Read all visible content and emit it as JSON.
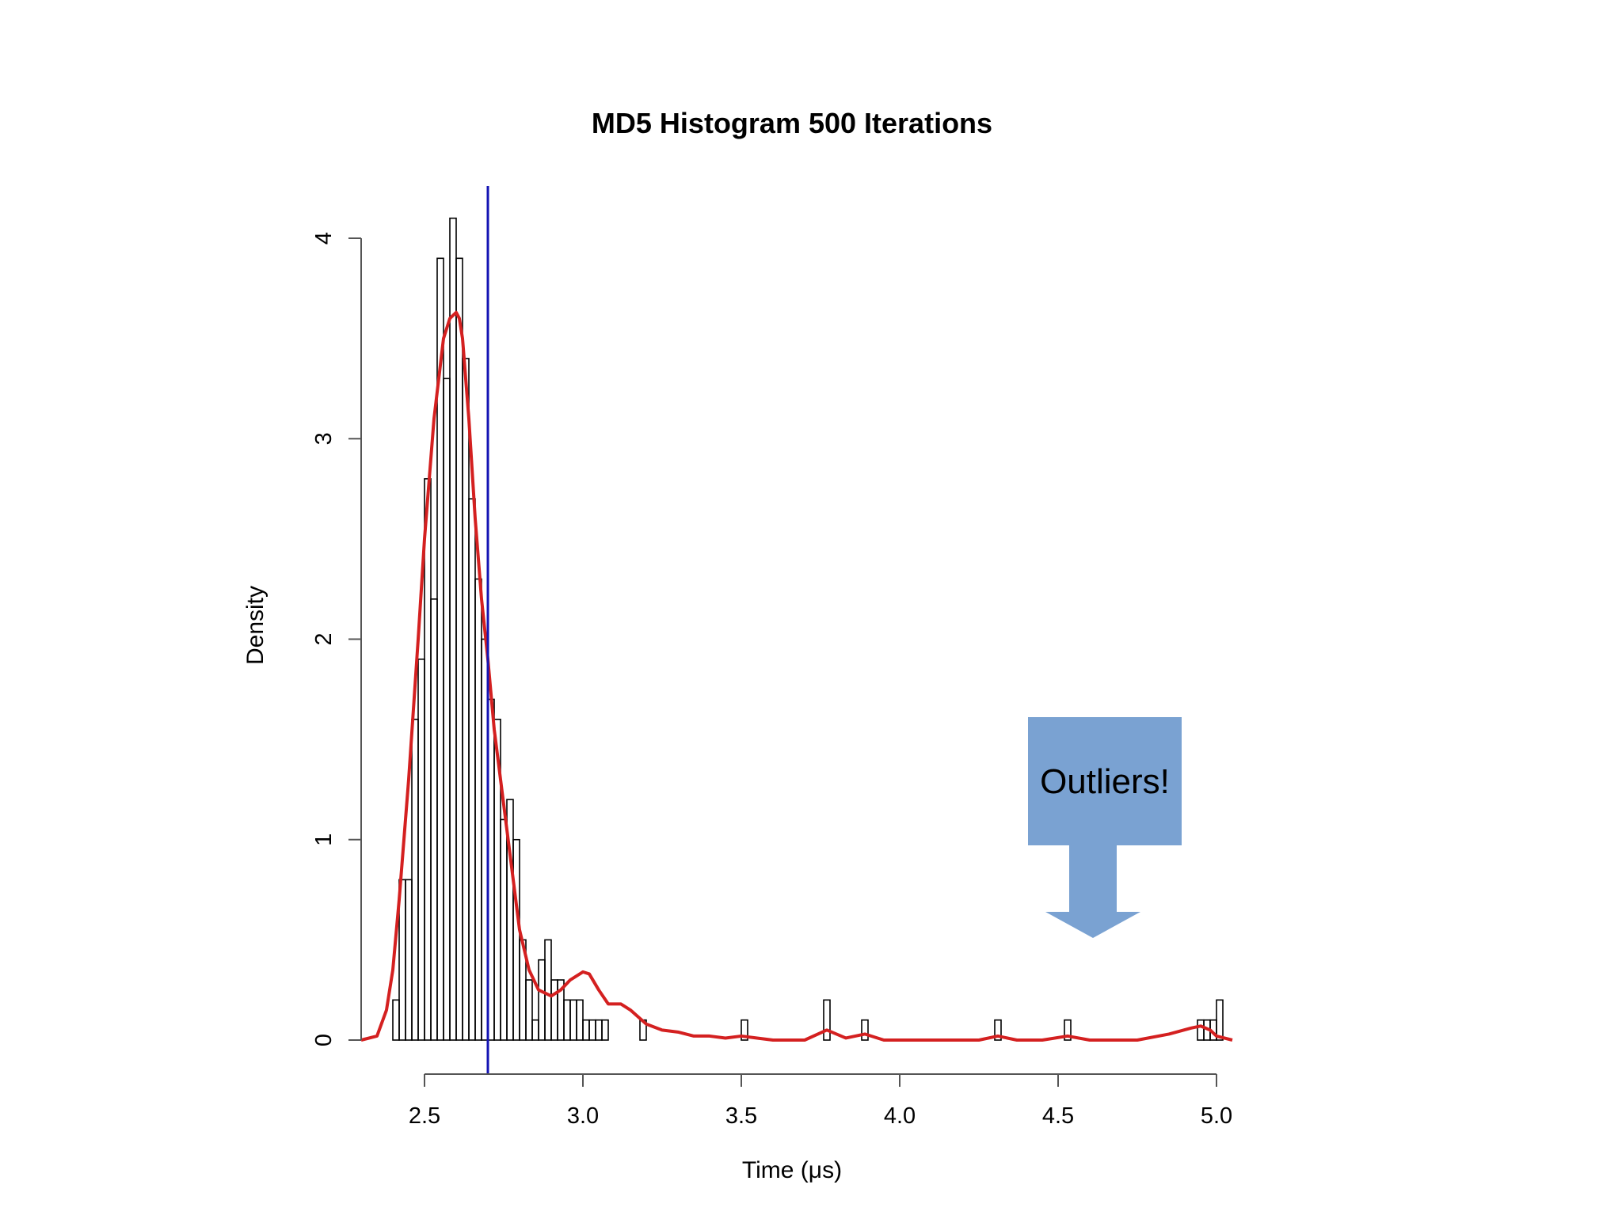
{
  "chart_data": {
    "type": "bar",
    "title": "MD5 Histogram 500 Iterations",
    "xlabel": "Time (μs)",
    "ylabel": "Density",
    "xlim": [
      2.3,
      5.05
    ],
    "ylim": [
      0,
      4.1
    ],
    "x_ticks": [
      2.5,
      3.0,
      3.5,
      4.0,
      4.5,
      5.0
    ],
    "x_tick_labels": [
      "2.5",
      "3.0",
      "3.5",
      "4.0",
      "4.5",
      "5.0"
    ],
    "y_ticks": [
      0,
      1,
      2,
      3,
      4
    ],
    "y_tick_labels": [
      "0",
      "1",
      "2",
      "3",
      "4"
    ],
    "bin_width": 0.02,
    "bins_start": 2.4,
    "histogram": [
      0.2,
      0.8,
      0.8,
      1.6,
      1.9,
      2.8,
      2.2,
      3.9,
      3.3,
      4.1,
      3.9,
      3.4,
      2.7,
      2.3,
      2.0,
      1.7,
      1.6,
      1.1,
      1.2,
      1.0,
      0.5,
      0.3,
      0.1,
      0.4,
      0.5,
      0.3,
      0.3,
      0.2,
      0.2,
      0.2,
      0.1,
      0.1,
      0.1,
      0.1,
      0.0,
      0.0,
      0.0,
      0.0,
      0.0,
      0.1,
      0.0,
      0.0,
      0.0,
      0.0,
      0.0,
      0.0,
      0.0,
      0.0,
      0.0,
      0.0,
      0.0,
      0.0,
      0.0,
      0.0,
      0.0,
      0.0,
      0.0,
      0.0,
      0.0,
      0.0,
      0.0,
      0.0,
      0.0,
      0.0,
      0.0,
      0.0,
      0.0,
      0.0,
      0.0,
      0.0,
      0.0,
      0.0,
      0.0,
      0.0,
      0.0,
      0.0,
      0.0,
      0.0,
      0.0,
      0.0,
      0.0,
      0.0,
      0.0,
      0.0,
      0.0,
      0.0,
      0.0,
      0.0,
      0.0,
      0.0,
      0.0,
      0.0,
      0.0,
      0.0,
      0.0,
      0.0,
      0.0,
      0.0,
      0.0,
      0.0,
      0.0,
      0.0,
      0.0,
      0.0,
      0.0,
      0.0,
      0.0,
      0.0,
      0.0,
      0.0,
      0.0,
      0.0,
      0.0,
      0.0,
      0.0,
      0.0,
      0.0,
      0.0,
      0.0,
      0.0,
      0.0,
      0.0,
      0.0,
      0.0,
      0.0,
      0.0,
      0.0,
      0.1,
      0.1,
      0.1,
      0.2
    ],
    "outlier_bins": [
      {
        "x": 3.51,
        "density": 0.1
      },
      {
        "x": 3.77,
        "density": 0.2
      },
      {
        "x": 3.89,
        "density": 0.1
      },
      {
        "x": 4.31,
        "density": 0.1
      },
      {
        "x": 4.53,
        "density": 0.1
      }
    ],
    "density_curve": {
      "name": "kernel density",
      "color": "#d42020",
      "x": [
        2.3,
        2.35,
        2.38,
        2.4,
        2.42,
        2.45,
        2.48,
        2.5,
        2.53,
        2.56,
        2.58,
        2.6,
        2.61,
        2.62,
        2.64,
        2.66,
        2.68,
        2.7,
        2.72,
        2.74,
        2.76,
        2.78,
        2.8,
        2.83,
        2.86,
        2.9,
        2.93,
        2.96,
        3.0,
        3.02,
        3.05,
        3.08,
        3.12,
        3.15,
        3.2,
        3.25,
        3.3,
        3.35,
        3.4,
        3.45,
        3.5,
        3.55,
        3.6,
        3.7,
        3.77,
        3.83,
        3.89,
        3.95,
        4.1,
        4.25,
        4.31,
        4.37,
        4.45,
        4.53,
        4.6,
        4.75,
        4.85,
        4.92,
        4.95,
        4.98,
        5.0,
        5.05
      ],
      "y": [
        0.0,
        0.02,
        0.15,
        0.35,
        0.7,
        1.3,
        2.0,
        2.5,
        3.1,
        3.5,
        3.6,
        3.63,
        3.6,
        3.5,
        3.1,
        2.6,
        2.2,
        1.9,
        1.55,
        1.3,
        1.05,
        0.8,
        0.55,
        0.35,
        0.25,
        0.22,
        0.25,
        0.3,
        0.34,
        0.33,
        0.25,
        0.18,
        0.18,
        0.15,
        0.08,
        0.05,
        0.04,
        0.02,
        0.02,
        0.01,
        0.02,
        0.01,
        0.0,
        0.0,
        0.05,
        0.01,
        0.03,
        0.0,
        0.0,
        0.0,
        0.02,
        0.0,
        0.0,
        0.02,
        0.0,
        0.0,
        0.03,
        0.06,
        0.07,
        0.05,
        0.02,
        0.0
      ]
    },
    "vline": {
      "x": 2.7,
      "color": "#1414b4"
    },
    "annotation": {
      "text": "Outliers!",
      "fill": "#7aa2d2",
      "target": "far-right outlier bins"
    }
  }
}
